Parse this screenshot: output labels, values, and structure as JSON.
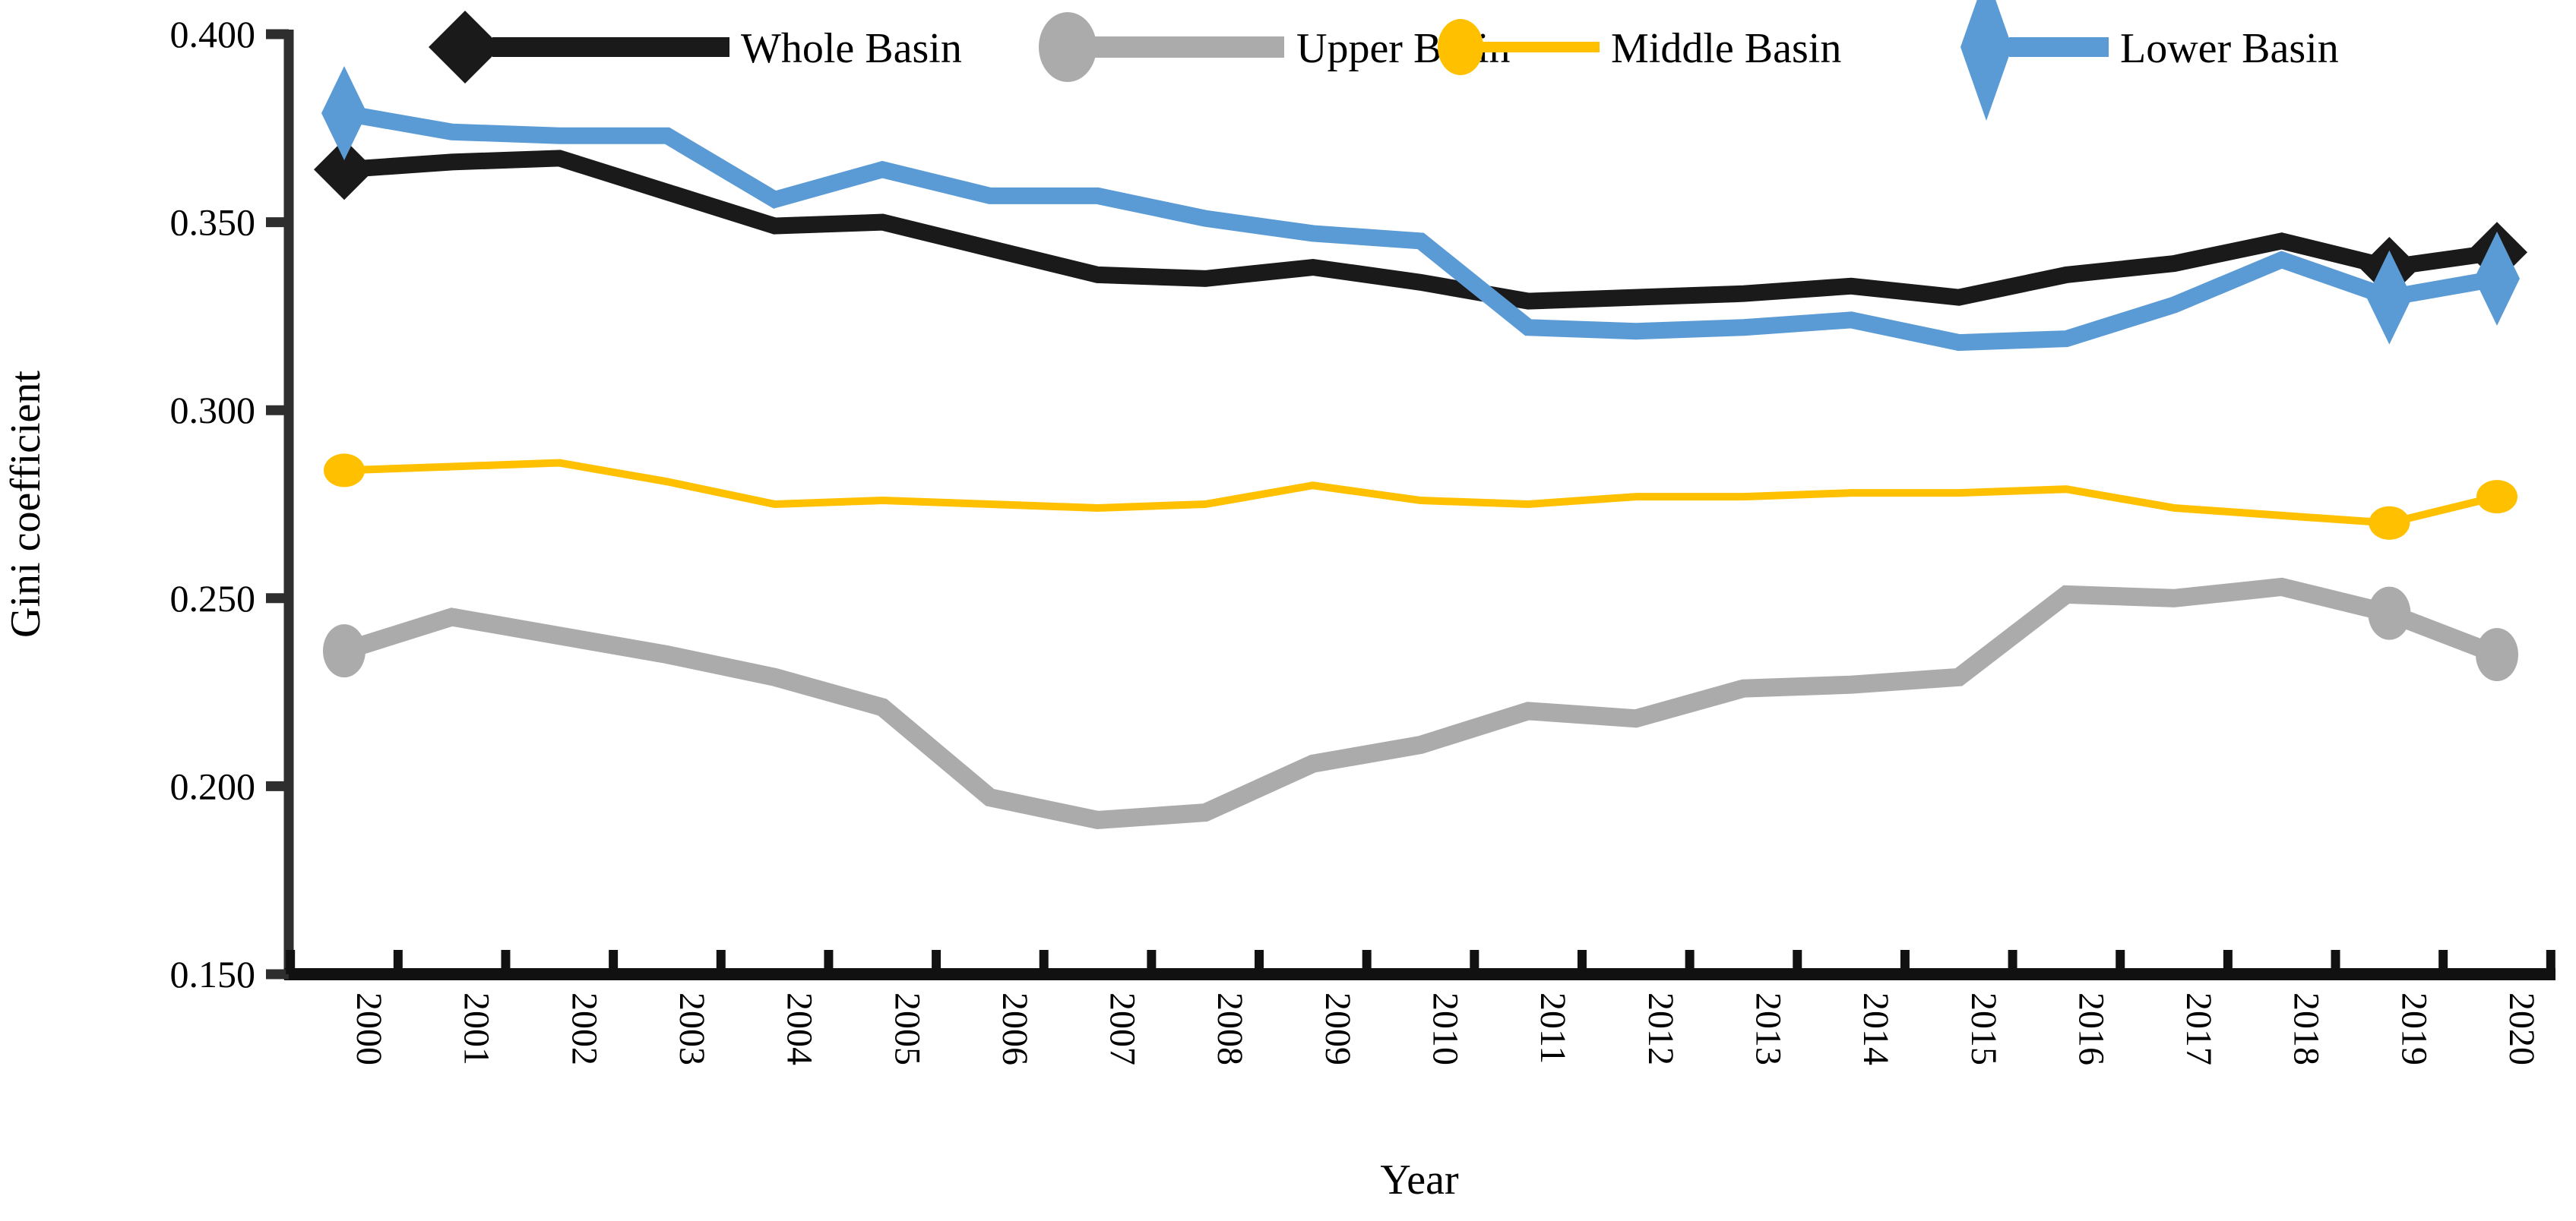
{
  "chart_data": {
    "type": "line",
    "title": "",
    "xlabel": "Year",
    "ylabel": "Gini coefficient",
    "x": [
      2000,
      2001,
      2002,
      2003,
      2004,
      2005,
      2006,
      2007,
      2008,
      2009,
      2010,
      2011,
      2012,
      2013,
      2014,
      2015,
      2016,
      2017,
      2018,
      2019,
      2020
    ],
    "ylim": [
      0.15,
      0.4
    ],
    "ytick_step": 0.05,
    "ytick_decimals": 3,
    "grid": false,
    "legend_position": "top",
    "axis_color": "#2e2e2e",
    "series": [
      {
        "name": "Whole Basin",
        "color": "#1a1a1a",
        "stroke_width": 22,
        "marker": "diamond",
        "marker_years": [
          2000,
          2019,
          2020
        ],
        "values": [
          0.364,
          0.366,
          0.367,
          0.358,
          0.349,
          0.35,
          0.343,
          0.336,
          0.335,
          0.338,
          0.334,
          0.329,
          0.33,
          0.331,
          0.333,
          0.33,
          0.336,
          0.339,
          0.345,
          0.338,
          0.342
        ]
      },
      {
        "name": "Upper Basin",
        "color": "#ababab",
        "stroke_width": 24,
        "marker": "circle",
        "marker_years": [
          2000,
          2019,
          2020
        ],
        "values": [
          0.236,
          0.245,
          0.24,
          0.235,
          0.229,
          0.221,
          0.197,
          0.191,
          0.193,
          0.206,
          0.211,
          0.22,
          0.218,
          0.226,
          0.227,
          0.229,
          0.251,
          0.25,
          0.253,
          0.246,
          0.235
        ]
      },
      {
        "name": "Middle Basin",
        "color": "#ffc000",
        "stroke_width": 10,
        "marker": "circle-small",
        "marker_years": [
          2000,
          2019,
          2020
        ],
        "values": [
          0.284,
          0.285,
          0.286,
          0.281,
          0.275,
          0.276,
          0.275,
          0.274,
          0.275,
          0.28,
          0.276,
          0.275,
          0.277,
          0.277,
          0.278,
          0.278,
          0.279,
          0.274,
          0.272,
          0.27,
          0.277
        ]
      },
      {
        "name": "Lower Basin",
        "color": "#5b9bd5",
        "stroke_width": 22,
        "marker": "tall-diamond",
        "marker_years": [
          2000,
          2019,
          2020
        ],
        "values": [
          0.379,
          0.374,
          0.373,
          0.373,
          0.356,
          0.364,
          0.357,
          0.357,
          0.351,
          0.347,
          0.345,
          0.322,
          0.321,
          0.322,
          0.324,
          0.318,
          0.319,
          0.328,
          0.34,
          0.33,
          0.335
        ]
      }
    ]
  }
}
